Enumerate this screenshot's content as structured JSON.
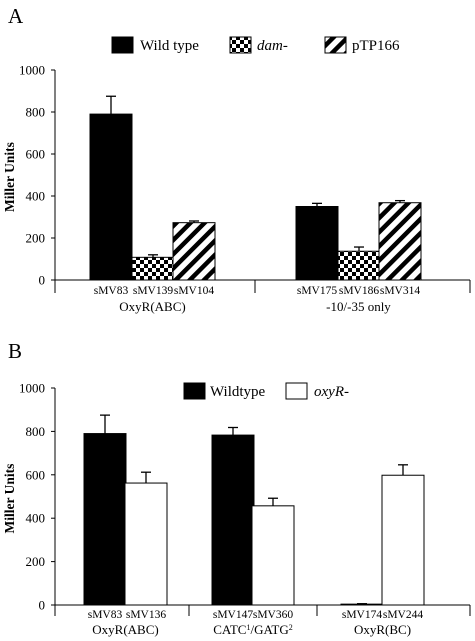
{
  "figure": {
    "background": "#ffffff"
  },
  "chart_data": [
    {
      "panel": "A",
      "type": "bar",
      "ylabel": "Miller Units",
      "ylim": [
        0,
        1000
      ],
      "yticks": [
        "0",
        "200",
        "400",
        "600",
        "800",
        "1000"
      ],
      "legend_position": "top",
      "series": [
        {
          "name": "Wild type",
          "italic": false,
          "pattern": "solid",
          "color": "#000000"
        },
        {
          "name": "dam-",
          "italic": true,
          "pattern": "checker",
          "color": "#000000"
        },
        {
          "name": "pTP166",
          "italic": false,
          "pattern": "diagonal",
          "color": "#000000"
        }
      ],
      "groups": [
        {
          "label": "OxyR(ABC)",
          "bars": [
            {
              "label": "sMV83",
              "series": 0,
              "value": 790,
              "error": 85
            },
            {
              "label": "sMV139",
              "series": 1,
              "value": 108,
              "error": 12
            },
            {
              "label": "sMV104",
              "series": 2,
              "value": 273,
              "error": 8
            }
          ]
        },
        {
          "label": "-10/-35 only",
          "bars": [
            {
              "label": "sMV175",
              "series": 0,
              "value": 350,
              "error": 15
            },
            {
              "label": "sMV186",
              "series": 1,
              "value": 137,
              "error": 20
            },
            {
              "label": "sMV314",
              "series": 2,
              "value": 368,
              "error": 10
            }
          ]
        }
      ]
    },
    {
      "panel": "B",
      "type": "bar",
      "ylabel": "Miller Units",
      "ylim": [
        0,
        1000
      ],
      "yticks": [
        "0",
        "200",
        "400",
        "600",
        "800",
        "1000"
      ],
      "legend_position": "top",
      "series": [
        {
          "name": "Wildtype",
          "italic": false,
          "pattern": "solid",
          "color": "#000000"
        },
        {
          "name": "oxyR-",
          "italic": true,
          "pattern": "open",
          "color": "#ffffff"
        }
      ],
      "groups": [
        {
          "label": "OxyR(ABC)",
          "bars": [
            {
              "label": "sMV83",
              "series": 0,
              "value": 790,
              "error": 85
            },
            {
              "label": "sMV136",
              "series": 1,
              "value": 562,
              "error": 50
            }
          ]
        },
        {
          "label_parts": [
            "CATC",
            "1",
            "/GATG",
            "2"
          ],
          "bars": [
            {
              "label": "sMV147",
              "series": 0,
              "value": 783,
              "error": 35
            },
            {
              "label": "sMV360",
              "series": 1,
              "value": 457,
              "error": 35
            }
          ]
        },
        {
          "label": "OxyR(BC)",
          "bars": [
            {
              "label": "sMV174",
              "series": 0,
              "value": 4,
              "error": 2
            },
            {
              "label": "sMV244",
              "series": 1,
              "value": 598,
              "error": 48
            }
          ]
        }
      ]
    }
  ]
}
